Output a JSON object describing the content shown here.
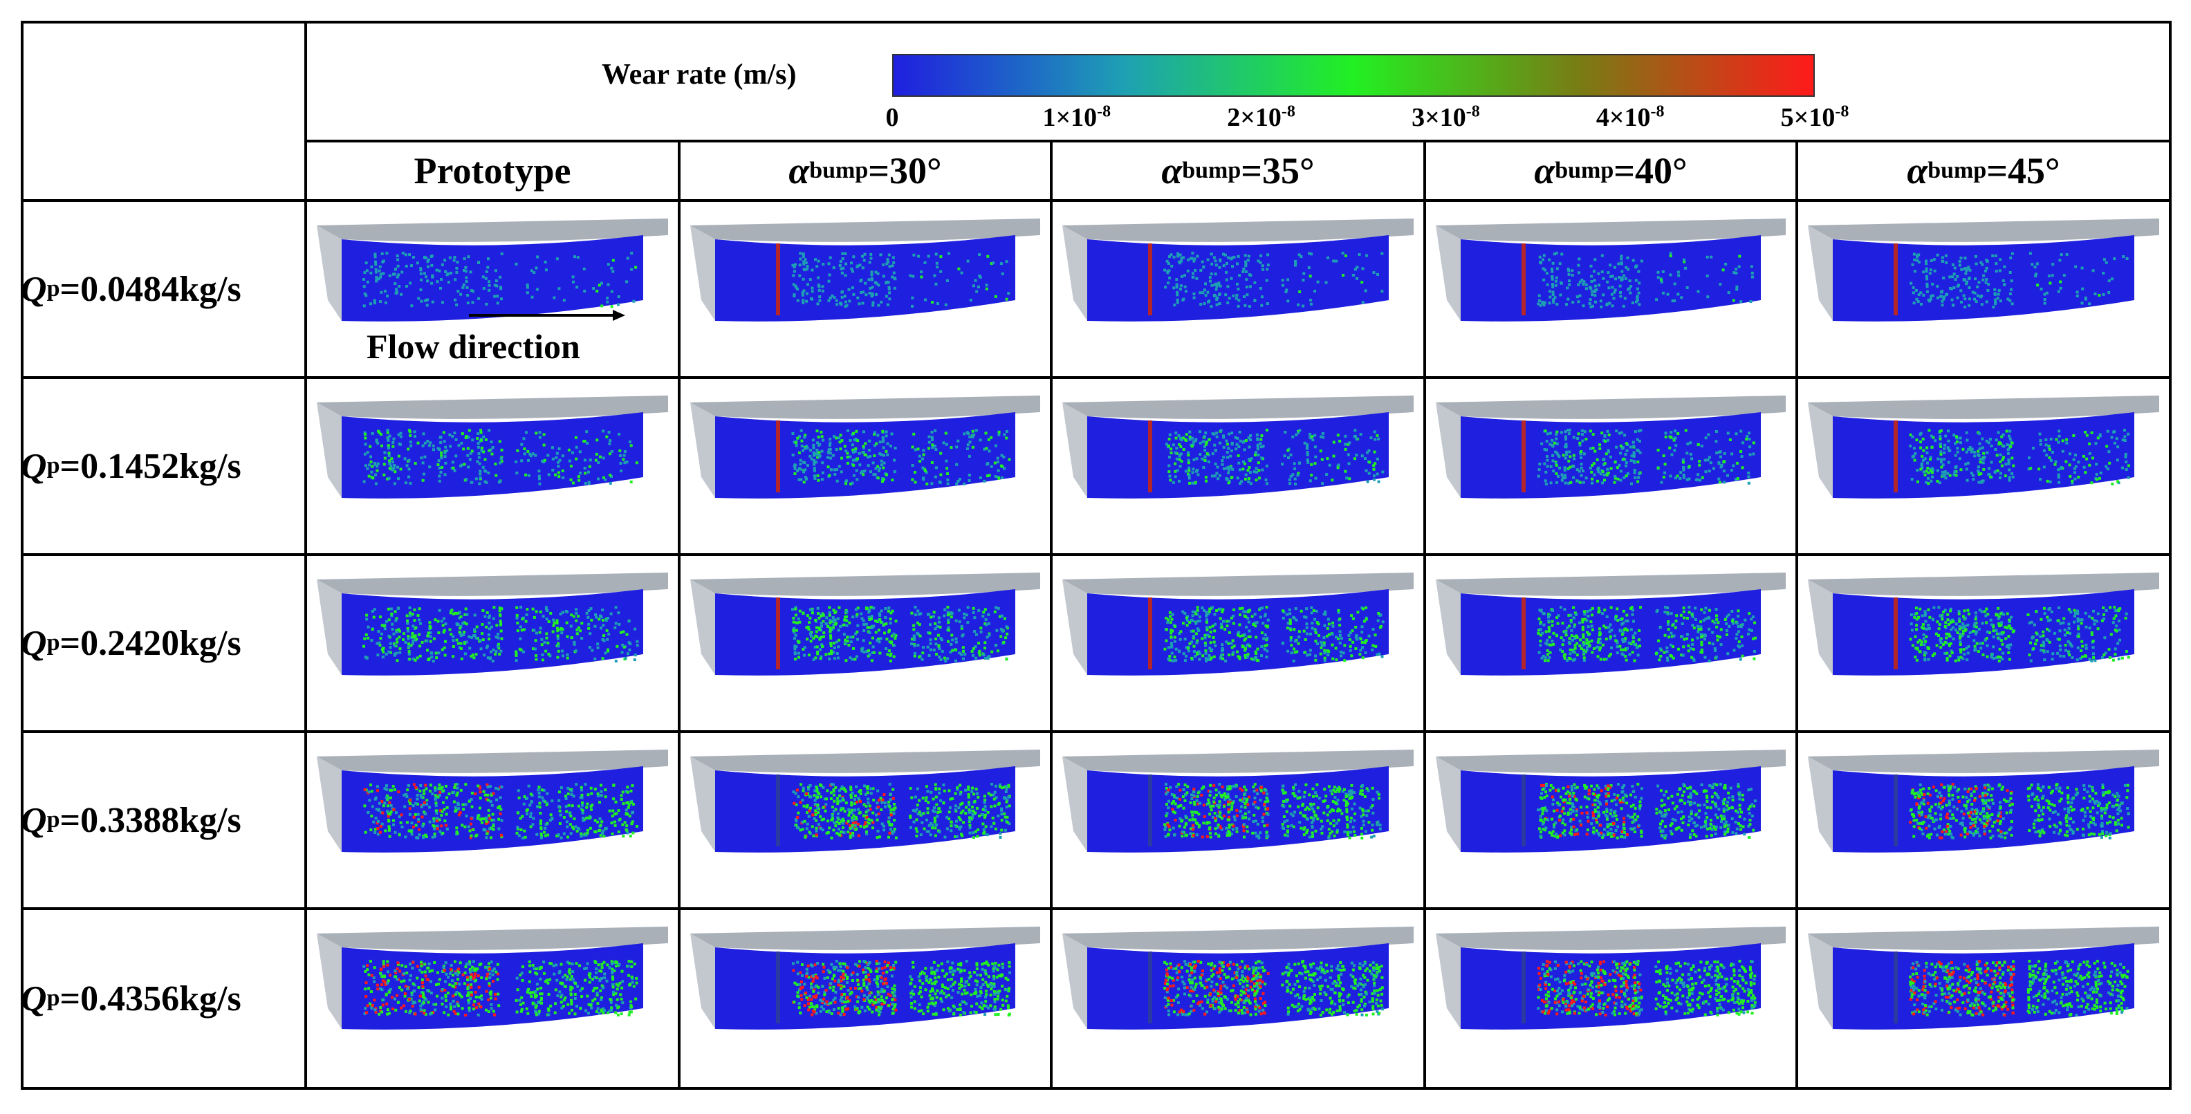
{
  "legend": {
    "title": "Wear rate (m/s)",
    "ticks": [
      "0",
      "1×10",
      "2×10",
      "3×10",
      "4×10",
      "5×10"
    ],
    "tick_exponent": "-8",
    "colors": [
      "#1f1fdf",
      "#1ea0b4",
      "#22f022",
      "#7a7a14",
      "#ff1a1a"
    ]
  },
  "columns": [
    {
      "label": "Prototype"
    },
    {
      "symbol": "α",
      "sub": "bump",
      "value": "=30°"
    },
    {
      "symbol": "α",
      "sub": "bump",
      "value": "=35°"
    },
    {
      "symbol": "α",
      "sub": "bump",
      "value": "=40°"
    },
    {
      "symbol": "α",
      "sub": "bump",
      "value": "=45°"
    }
  ],
  "rows": [
    {
      "symbol": "Q",
      "sub": "p",
      "value": "=0.0484kg/s",
      "intensity": 0.15
    },
    {
      "symbol": "Q",
      "sub": "p",
      "value": "=0.1452kg/s",
      "intensity": 0.35
    },
    {
      "symbol": "Q",
      "sub": "p",
      "value": "=0.2420kg/s",
      "intensity": 0.55
    },
    {
      "symbol": "Q",
      "sub": "p",
      "value": "=0.3388kg/s",
      "intensity": 0.75
    },
    {
      "symbol": "Q",
      "sub": "p",
      "value": "=0.4356kg/s",
      "intensity": 0.9
    }
  ],
  "annotation": {
    "flow_label": "Flow direction"
  }
}
